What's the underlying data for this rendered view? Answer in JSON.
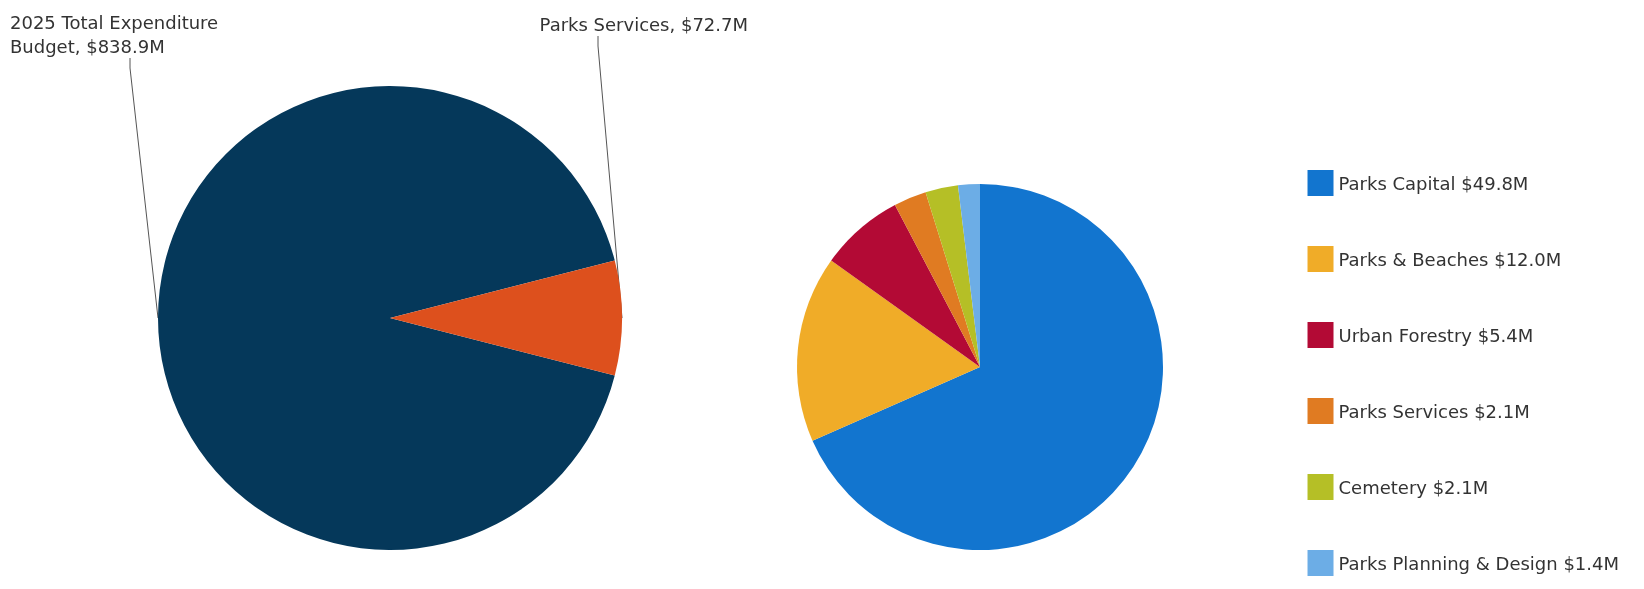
{
  "chart_data": [
    {
      "type": "pie",
      "categories": [
        "2025 Total Expenditure Budget",
        "Parks Services"
      ],
      "values": [
        838.9,
        72.7
      ],
      "value_labels": [
        "$838.9M",
        "$72.7M"
      ],
      "colors": [
        "#05385a",
        "#dd501d"
      ],
      "legend": false
    },
    {
      "type": "pie",
      "categories": [
        "Parks Capital",
        "Parks & Beaches",
        "Urban Forestry",
        "Parks Services",
        "Cemetery",
        "Parks Planning & Design"
      ],
      "values": [
        49.8,
        12.0,
        5.4,
        2.1,
        2.1,
        1.4
      ],
      "value_labels": [
        "$49.8M",
        "$12.0M",
        "$5.4M",
        "$2.1M",
        "$2.1M",
        "$1.4M"
      ],
      "colors": [
        "#1275cf",
        "#f0ac28",
        "#b30a35",
        "#e07b22",
        "#b5bf26",
        "#6cade6"
      ],
      "legend": "right"
    }
  ]
}
